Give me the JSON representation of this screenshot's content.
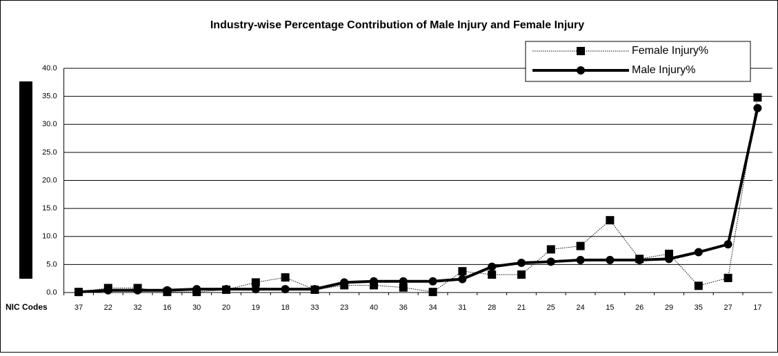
{
  "chart_data": {
    "type": "line",
    "title": "Industry-wise Percentage Contribution  of Male Injury and Female Injury",
    "xlabel": "NIC Codes",
    "categories": [
      "37",
      "22",
      "32",
      "16",
      "30",
      "20",
      "19",
      "18",
      "33",
      "23",
      "40",
      "36",
      "34",
      "31",
      "28",
      "21",
      "25",
      "24",
      "15",
      "26",
      "29",
      "35",
      "27",
      "17"
    ],
    "series": [
      {
        "name": "Female Injury%",
        "color": "#000000",
        "values": [
          0.1,
          0.8,
          0.8,
          0.1,
          0.1,
          0.5,
          1.8,
          2.7,
          0.5,
          1.3,
          1.3,
          0.9,
          0.1,
          3.8,
          3.2,
          3.2,
          7.7,
          8.3,
          12.9,
          6.0,
          6.9,
          1.2,
          2.6,
          34.8
        ]
      },
      {
        "name": "Male Injury%",
        "color": "#000000",
        "values": [
          0.1,
          0.4,
          0.4,
          0.4,
          0.6,
          0.6,
          0.6,
          0.6,
          0.6,
          1.8,
          2.0,
          2.0,
          2.0,
          2.4,
          4.6,
          5.3,
          5.5,
          5.8,
          5.8,
          5.8,
          6.0,
          7.2,
          8.6,
          32.9
        ]
      }
    ],
    "ylim": [
      0,
      40
    ],
    "yticks": [
      {
        "value": 0,
        "label": "0.0"
      },
      {
        "value": 5,
        "label": "5.0"
      },
      {
        "value": 10,
        "label": "10.0"
      },
      {
        "value": 15,
        "label": "15.0"
      },
      {
        "value": 20,
        "label": "20.0"
      },
      {
        "value": 25,
        "label": "25.0"
      },
      {
        "value": 30,
        "label": "30.0"
      },
      {
        "value": 35,
        "label": "35.0"
      },
      {
        "value": 40,
        "label": "40.0"
      }
    ],
    "grid": true,
    "legend": "upper right"
  }
}
